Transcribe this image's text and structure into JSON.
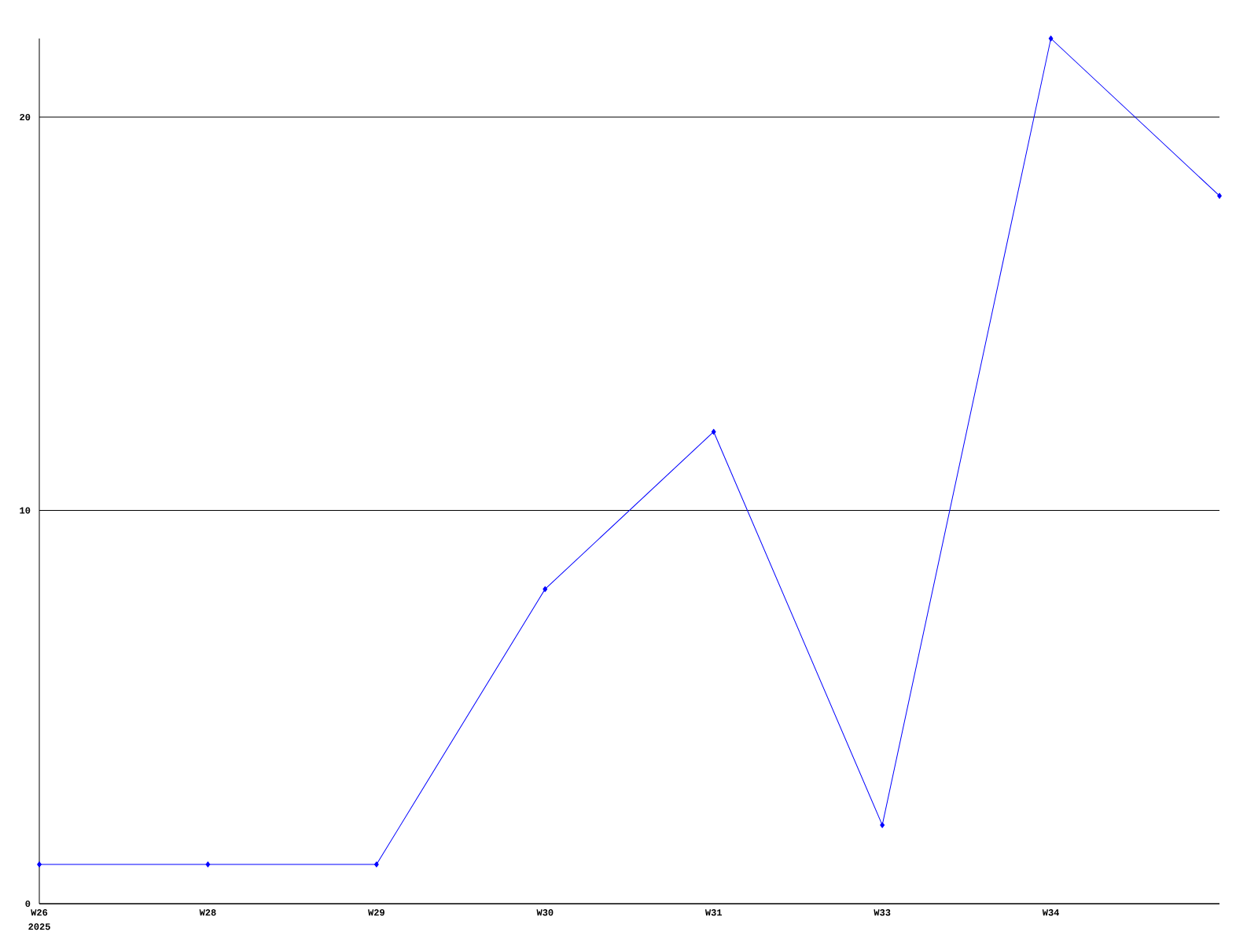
{
  "chart_data": {
    "type": "line",
    "categories": [
      "W26",
      "W28",
      "W29",
      "W30",
      "W31",
      "W33",
      "W34",
      null
    ],
    "values": [
      1,
      1,
      1,
      8,
      12,
      2,
      22,
      18
    ],
    "color": "#0000ff",
    "ylim": [
      0,
      22
    ],
    "yticks": [
      0,
      10,
      20
    ],
    "grid": "y",
    "marker": "diamond",
    "line_style": "solid",
    "annotations": [
      "2025"
    ]
  }
}
